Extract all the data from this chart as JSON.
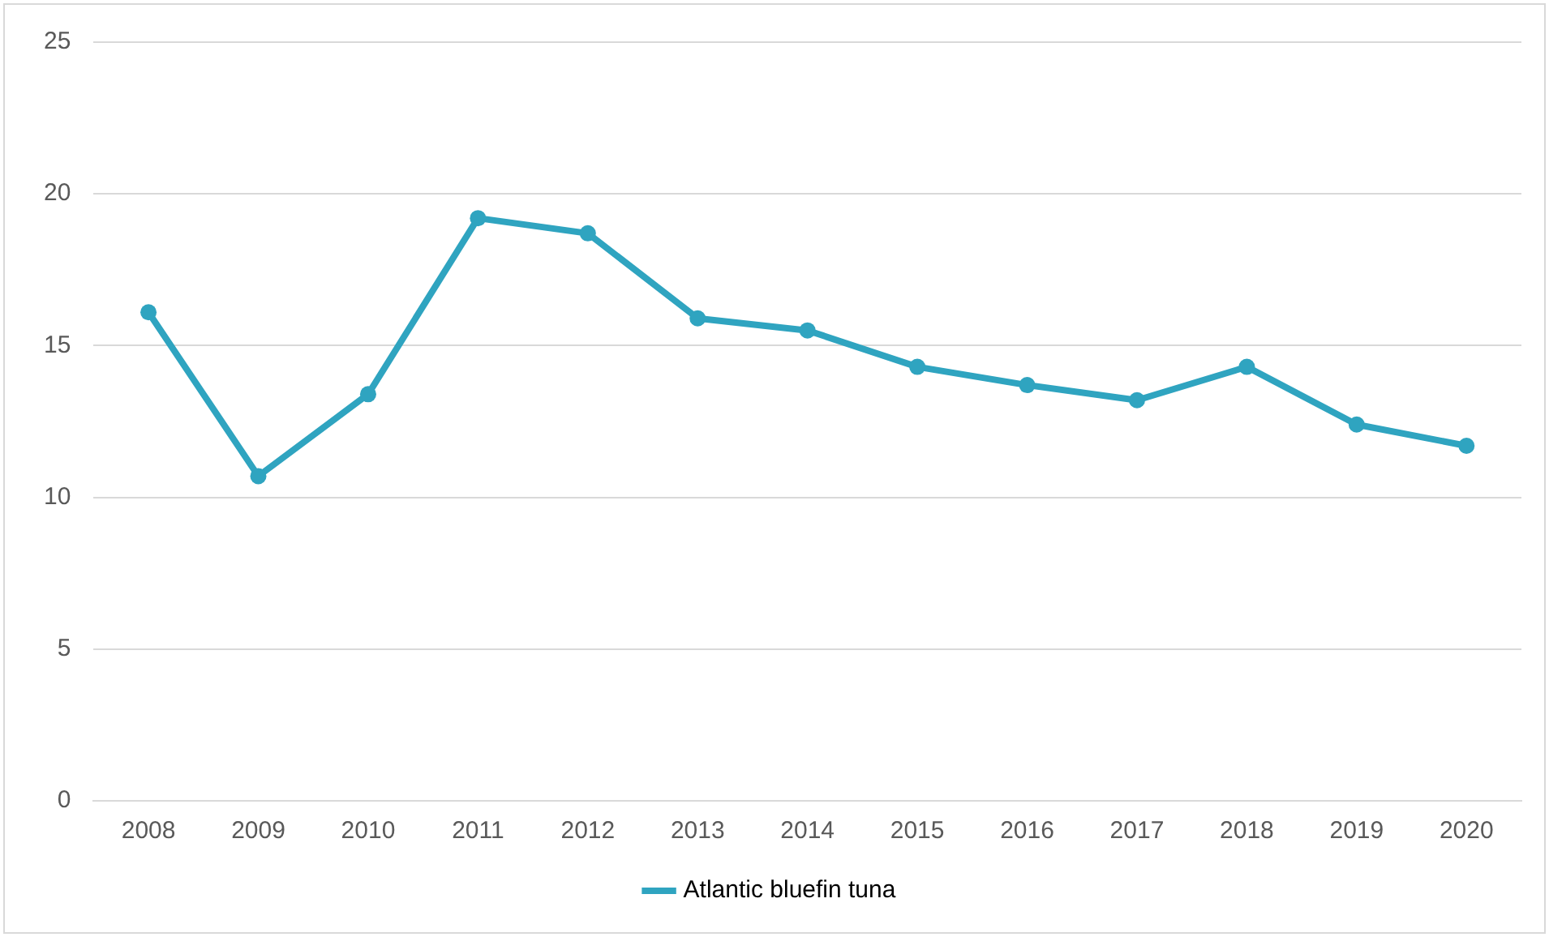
{
  "chart_data": {
    "type": "line",
    "categories": [
      "2008",
      "2009",
      "2010",
      "2011",
      "2012",
      "2013",
      "2014",
      "2015",
      "2016",
      "2017",
      "2018",
      "2019",
      "2020"
    ],
    "series": [
      {
        "name": "Atlantic bluefin tuna",
        "color": "#2fa4c0",
        "values": [
          16.1,
          10.7,
          13.4,
          19.2,
          18.7,
          15.9,
          15.5,
          14.3,
          13.7,
          13.2,
          14.3,
          12.4,
          11.7
        ]
      }
    ],
    "ylim": [
      0,
      25
    ],
    "yticks": [
      0,
      5,
      10,
      15,
      20,
      25
    ],
    "grid": "y",
    "legend": "bottom",
    "marker": "circle",
    "line_style": "solid"
  }
}
